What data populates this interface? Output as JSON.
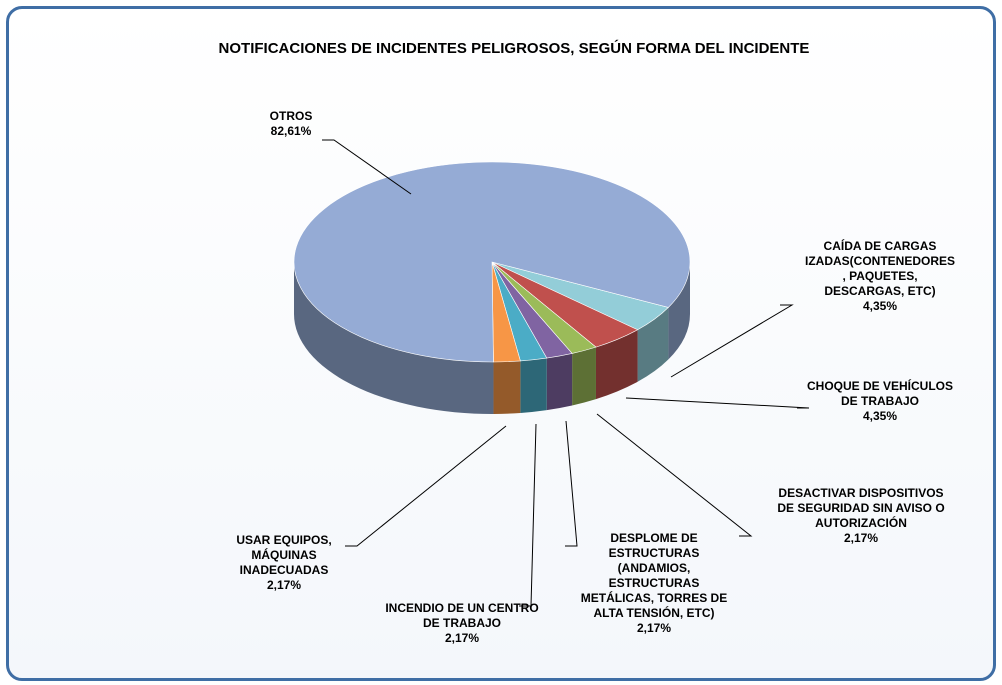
{
  "chart_data": {
    "type": "pie",
    "title": "NOTIFICACIONES DE INCIDENTES PELIGROSOS, SEGÚN FORMA DEL INCIDENTE",
    "categories": [
      "OTROS",
      "CAÍDA DE CARGAS IZADAS(CONTENEDORES, PAQUETES, DESCARGAS, ETC)",
      "CHOQUE DE VEHÍCULOS DE TRABAJO",
      "DESACTIVAR DISPOSITIVOS DE SEGURIDAD SIN AVISO O AUTORIZACIÓN",
      "DESPLOME DE ESTRUCTURAS (ANDAMIOS, ESTRUCTURAS METÁLICAS, TORRES DE ALTA TENSIÓN, ETC)",
      "INCENDIO DE UN CENTRO DE TRABAJO",
      "USAR EQUIPOS, MÁQUINAS INADECUADAS"
    ],
    "values": [
      82.61,
      4.35,
      4.35,
      2.17,
      2.17,
      2.17,
      2.17
    ],
    "value_labels": [
      "82,61%",
      "4,35%",
      "4,35%",
      "2,17%",
      "2,17%",
      "2,17%",
      "2,17%"
    ],
    "colors": [
      "#95abd5",
      "#93cdd8",
      "#c0504d",
      "#9bbb59",
      "#8064a2",
      "#4bacc6",
      "#f79646"
    ]
  }
}
